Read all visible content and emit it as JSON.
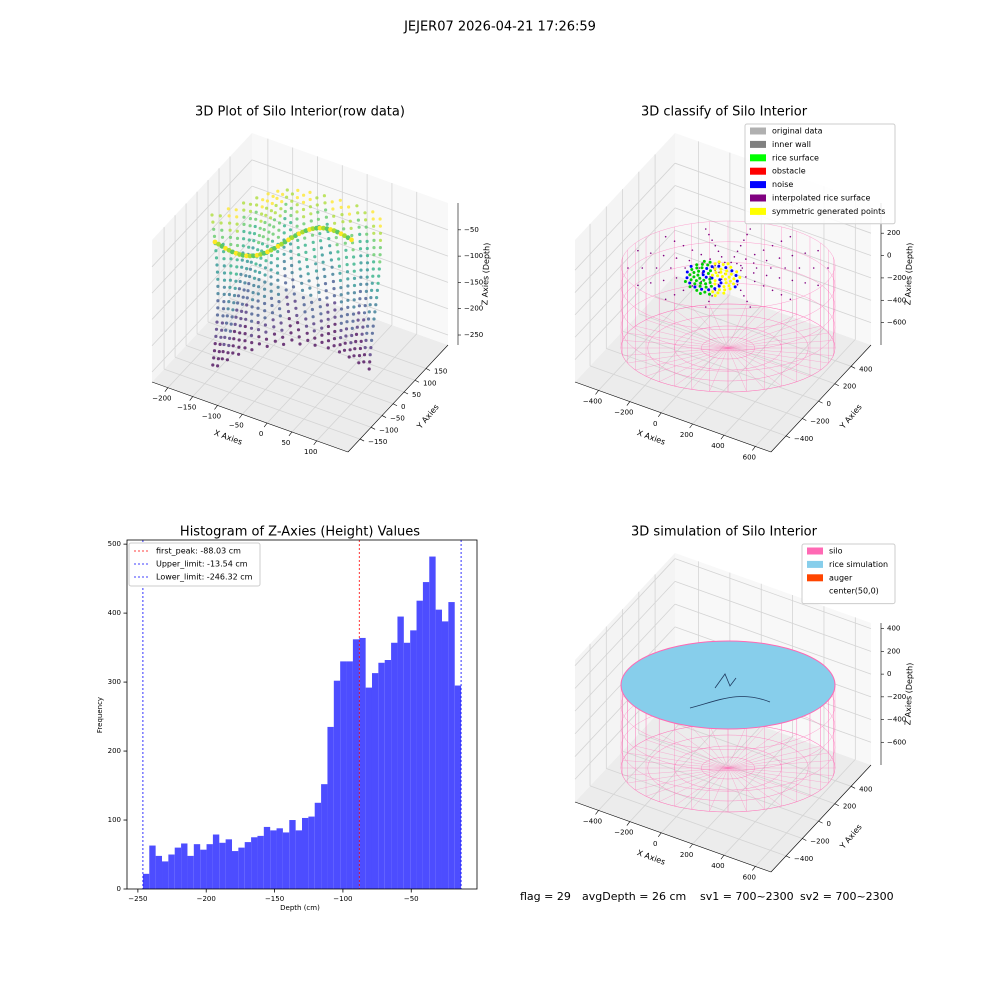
{
  "suptitle": "JEJER07 2026-04-21 17:26:59",
  "footer": [
    "flag = 29",
    "avgDepth = 26 cm",
    "sv1 = 700~2300",
    "sv2 = 700~2300"
  ],
  "chart_data": [
    {
      "type": "scatter3d",
      "title": "3D Plot of Silo Interior(row data)",
      "xlabel": "X Axies",
      "ylabel": "Y Axies",
      "zlabel": "Z Axies (Depth)",
      "xlim": [
        -232,
        163
      ],
      "ylim": [
        -205,
        250
      ],
      "zlim": [
        -269,
        1
      ],
      "xticks": [
        {
          "value": -200,
          "label": "−200"
        },
        {
          "value": -150,
          "label": "−150"
        },
        {
          "value": -100,
          "label": "−100"
        },
        {
          "value": -50,
          "label": "−50"
        },
        0,
        50,
        100
      ],
      "yticks": [
        {
          "value": -150,
          "label": "−150"
        },
        {
          "value": -100,
          "label": "−100"
        },
        {
          "value": -50,
          "label": "−50"
        },
        0,
        50,
        100,
        150
      ],
      "zticks": [
        {
          "value": -250,
          "label": "−250"
        },
        {
          "value": -200,
          "label": "−200"
        },
        {
          "value": -150,
          "label": "−150"
        },
        {
          "value": -100,
          "label": "−100"
        },
        {
          "value": -50,
          "label": "−50"
        }
      ],
      "colormap": "viridis"
    },
    {
      "type": "classify3d",
      "title": "3D classify of Silo Interior",
      "xlabel": "X Axies",
      "ylabel": "Y Axies",
      "zlabel": "Z Axies (Depth)",
      "xlim": [
        -550,
        700
      ],
      "ylim": [
        -585,
        645
      ],
      "zlim": [
        -800,
        470
      ],
      "xticks": [
        {
          "value": -400,
          "label": "−400"
        },
        {
          "value": -200,
          "label": "−200"
        },
        0,
        200,
        400,
        600
      ],
      "yticks": [
        {
          "value": -400,
          "label": "−400"
        },
        {
          "value": -200,
          "label": "−200"
        },
        0,
        200,
        400
      ],
      "zticks": [
        {
          "value": -600,
          "label": "−600"
        },
        {
          "value": -400,
          "label": "−400"
        },
        {
          "value": -200,
          "label": "−200"
        },
        0,
        200
      ],
      "legend": "upper right",
      "series": [
        {
          "name": "original data",
          "color": "#b0b0b0"
        },
        {
          "name": "inner wall",
          "color": "#808080"
        },
        {
          "name": "rice surface",
          "color": "#00ff00"
        },
        {
          "name": "obstacle",
          "color": "#ff0000"
        },
        {
          "name": "noise",
          "color": "#0000ff"
        },
        {
          "name": "interpolated rice surface",
          "color": "#800080"
        },
        {
          "name": "symmetric generated points",
          "color": "#ffff00"
        }
      ]
    },
    {
      "type": "histogram",
      "title": "Histogram of Z-Axies (Height) Values",
      "xlabel": "Depth (cm)",
      "ylabel": "Frequency",
      "color": "#4d4dff",
      "bins": [
        -246.32,
        -241.66,
        -237.01,
        -232.35,
        -227.7,
        -223.04,
        -218.39,
        -213.73,
        -209.08,
        -204.42,
        -199.76,
        -195.11,
        -190.45,
        -185.8,
        -181.14,
        -176.49,
        -171.83,
        -167.17,
        -162.52,
        -157.86,
        -153.21,
        -148.55,
        -143.9,
        -139.24,
        -134.59,
        -129.93,
        -125.27,
        -120.62,
        -115.96,
        -111.31,
        -106.65,
        -102.0,
        -97.34,
        -92.69,
        -88.03,
        -83.37,
        -78.72,
        -74.06,
        -69.41,
        -64.75,
        -60.1,
        -55.44,
        -50.78,
        -46.13,
        -41.47,
        -36.82,
        -32.16,
        -27.51,
        -22.85,
        -18.2,
        -13.54
      ],
      "counts": [
        22,
        63,
        48,
        40,
        50,
        60,
        66,
        48,
        65,
        57,
        65,
        79,
        67,
        72,
        55,
        60,
        68,
        75,
        77,
        90,
        85,
        88,
        82,
        100,
        85,
        103,
        105,
        125,
        152,
        235,
        302,
        330,
        330,
        362,
        364,
        292,
        313,
        328,
        332,
        357,
        395,
        357,
        375,
        418,
        445,
        482,
        405,
        388,
        416,
        295
      ],
      "xlim": [
        -257.96,
        -1.9
      ],
      "ylim": [
        0,
        506
      ],
      "xticks": [
        {
          "value": -250,
          "label": "−250"
        },
        {
          "value": -200,
          "label": "−200"
        },
        {
          "value": -150,
          "label": "−150"
        },
        {
          "value": -100,
          "label": "−100"
        },
        {
          "value": -50,
          "label": "−50"
        }
      ],
      "yticks": [
        0,
        100,
        200,
        300,
        400,
        500
      ],
      "legend": "upper left",
      "vlines": [
        {
          "name": "first_peak: -88.03 cm",
          "value": -88.03,
          "color": "#ff0000"
        },
        {
          "name": "Upper_limit: -13.54 cm",
          "value": -13.54,
          "color": "#0000ff"
        },
        {
          "name": "Lower_limit: -246.32 cm",
          "value": -246.32,
          "color": "#0000ff"
        }
      ]
    },
    {
      "type": "simulation3d",
      "title": "3D simulation of Silo Interior",
      "xlabel": "X Axies",
      "ylabel": "Y Axies",
      "zlabel": "Z Axies (Depth)",
      "xlim": [
        -550,
        700
      ],
      "ylim": [
        -585,
        645
      ],
      "zlim": [
        -800,
        450
      ],
      "xticks": [
        {
          "value": -400,
          "label": "−400"
        },
        {
          "value": -200,
          "label": "−200"
        },
        0,
        200,
        400,
        600
      ],
      "yticks": [
        {
          "value": -400,
          "label": "−400"
        },
        {
          "value": -200,
          "label": "−200"
        },
        0,
        200,
        400
      ],
      "zticks": [
        {
          "value": -600,
          "label": "−600"
        },
        {
          "value": -400,
          "label": "−400"
        },
        {
          "value": -200,
          "label": "−200"
        },
        0,
        200,
        400
      ],
      "legend": "upper right",
      "series": [
        {
          "name": "silo",
          "color": "#ff69b4"
        },
        {
          "name": "rice simulation",
          "color": "#87ceeb"
        },
        {
          "name": "auger",
          "color": "#ff4500"
        },
        {
          "name": "center(50,0)",
          "color": "#ffffff"
        }
      ]
    }
  ]
}
